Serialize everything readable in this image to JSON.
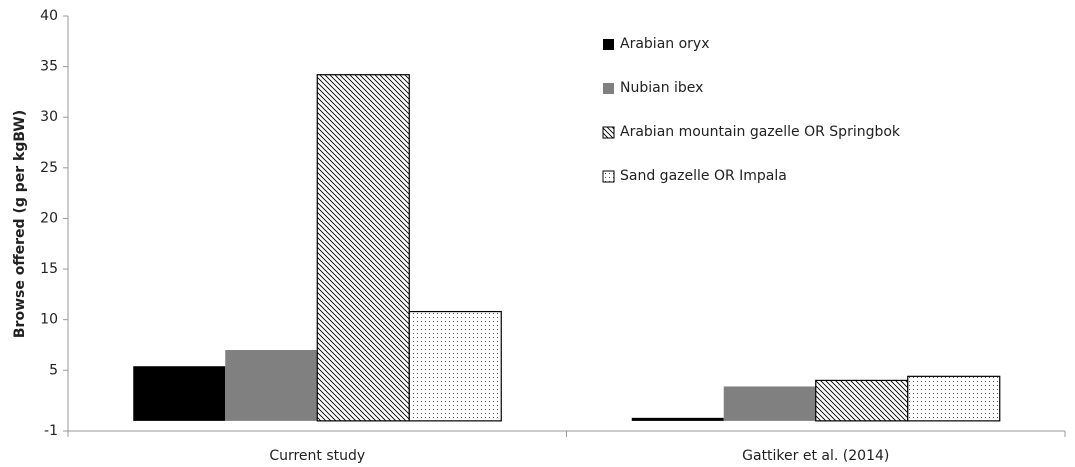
{
  "chart_data": {
    "type": "bar",
    "y_label": "Browse offered (g per kgBW)",
    "categories": [
      "Current study",
      "Gattiker et al. (2014)"
    ],
    "series": [
      {
        "name": "Arabian oryx",
        "color": "#000000",
        "pattern": "solid",
        "values": [
          5.4,
          0.3
        ]
      },
      {
        "name": "Nubian ibex",
        "color": "#808080",
        "pattern": "solid",
        "values": [
          7.0,
          3.4
        ]
      },
      {
        "name": "Arabian mountain gazelle OR Springbok",
        "color": "#000000",
        "pattern": "hatch",
        "values": [
          34.2,
          4.0
        ]
      },
      {
        "name": "Sand gazelle OR Impala",
        "color": "#000000",
        "pattern": "dots",
        "values": [
          10.8,
          4.4
        ]
      }
    ],
    "ylim": [
      -1,
      40
    ],
    "yticks": [
      -1,
      5,
      10,
      15,
      20,
      25,
      30,
      35,
      40
    ],
    "legend": "top-right"
  }
}
